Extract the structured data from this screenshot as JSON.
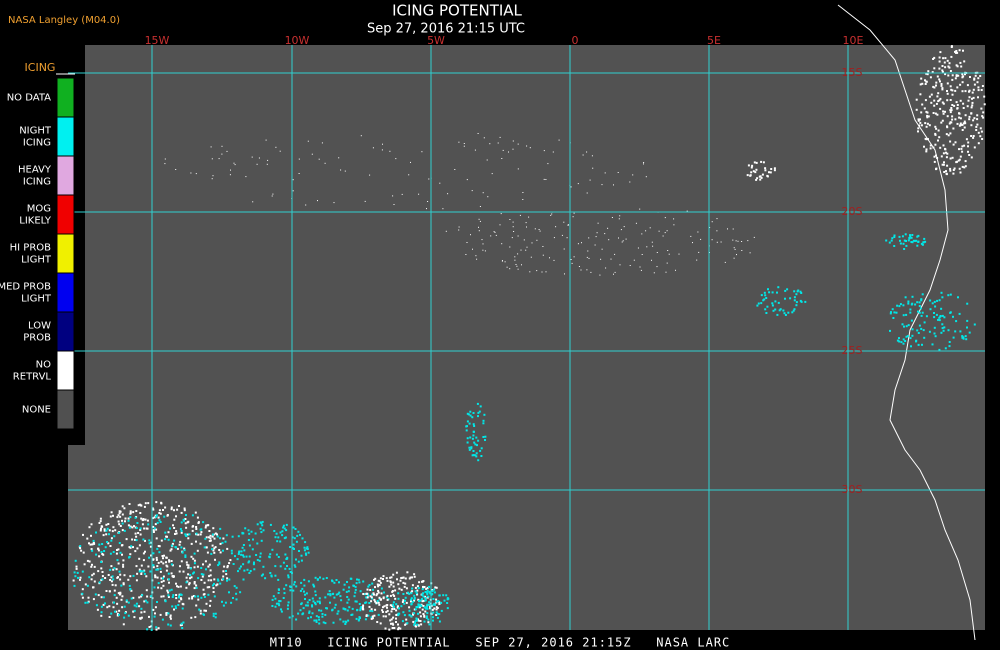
{
  "header": {
    "source": "NASA Langley (M04.0)",
    "title": "ICING POTENTIAL",
    "time": "Sep 27, 2016 21:15 UTC"
  },
  "map": {
    "longitudes": [
      "15W",
      "10W",
      "5W",
      "0",
      "5E",
      "10E"
    ],
    "latitudes": [
      "15S",
      "20S",
      "25S",
      "30S"
    ]
  },
  "legend": {
    "title": "ICING",
    "items": [
      {
        "label": [
          "NO DATA"
        ],
        "color": "#10b020"
      },
      {
        "label": [
          "NIGHT",
          "ICING"
        ],
        "color": "#00f0f0"
      },
      {
        "label": [
          "HEAVY",
          "ICING"
        ],
        "color": "#e0a8e0"
      },
      {
        "label": [
          "MOG",
          "LIKELY"
        ],
        "color": "#f00000"
      },
      {
        "label": [
          "HI PROB",
          "LIGHT"
        ],
        "color": "#f0f000"
      },
      {
        "label": [
          "MED PROB",
          "LIGHT"
        ],
        "color": "#0000f0"
      },
      {
        "label": [
          "LOW",
          "PROB"
        ],
        "color": "#000080"
      },
      {
        "label": [
          "NO",
          "RETRVL"
        ],
        "color": "#ffffff"
      },
      {
        "label": [
          "NONE"
        ],
        "color": "#505050"
      }
    ]
  },
  "footer": "MT10   ICING POTENTIAL   SEP 27, 2016 21:15Z   NASA LARC"
}
